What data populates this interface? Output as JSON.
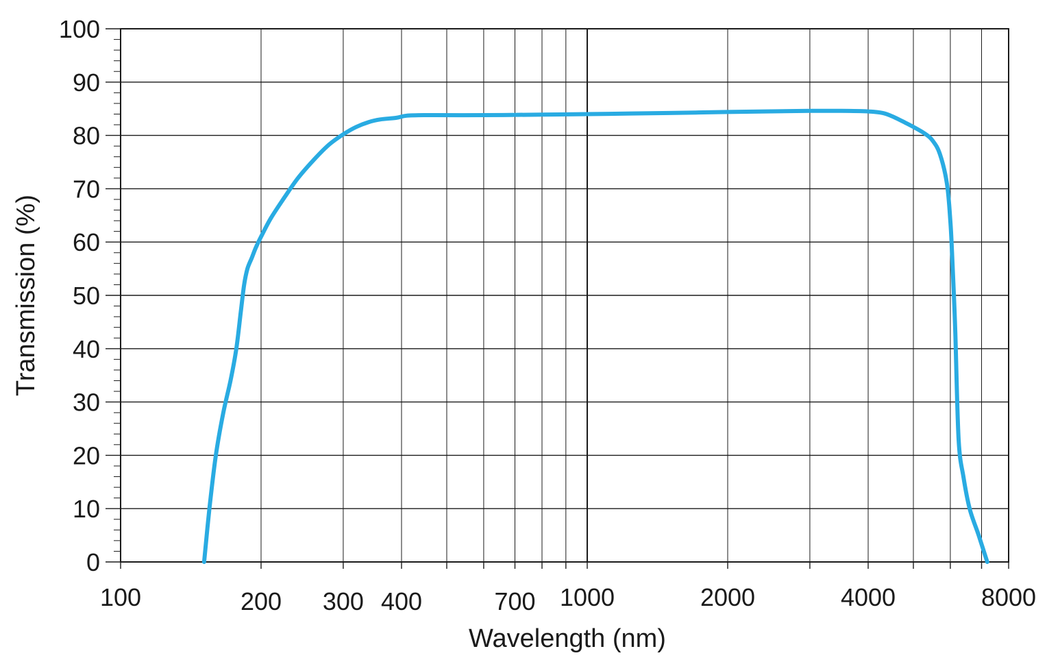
{
  "chart_data": {
    "type": "line",
    "xlabel": "Wavelength (nm)",
    "ylabel": "Transmission (%)",
    "xscale": "log",
    "xlim": [
      100,
      8000
    ],
    "ylim": [
      0,
      100
    ],
    "grid": true,
    "x_ticks": [
      100,
      200,
      300,
      400,
      700,
      1000,
      2000,
      4000,
      8000
    ],
    "x_tick_labels": [
      "100",
      "200",
      "300",
      "400",
      "700",
      "1000",
      "2000",
      "4000",
      "8000"
    ],
    "x_gridlines": [
      100,
      200,
      300,
      400,
      500,
      600,
      700,
      800,
      900,
      1000,
      2000,
      3000,
      4000,
      5000,
      6000,
      7000,
      8000
    ],
    "y_ticks": [
      0,
      10,
      20,
      30,
      40,
      50,
      60,
      70,
      80,
      90,
      100
    ],
    "y_tick_labels": [
      "0",
      "10",
      "20",
      "30",
      "40",
      "50",
      "60",
      "70",
      "80",
      "90",
      "100"
    ],
    "line_color": "#29abe2",
    "series": [
      {
        "x": [
          151,
          155,
          160,
          166,
          172,
          177,
          181,
          184,
          187,
          191,
          195,
          200,
          210,
          225,
          240,
          260,
          280,
          300,
          320,
          340,
          360,
          390,
          410,
          450,
          600,
          800,
          1000,
          1500,
          2000,
          3000,
          3500,
          4000,
          4300,
          4500,
          4800,
          5000,
          5300,
          5500,
          5700,
          5900,
          6000,
          6050,
          6100,
          6150,
          6250,
          6400,
          6600,
          6900,
          7200
        ],
        "y": [
          0,
          10,
          20,
          28,
          34,
          40,
          47,
          52,
          55,
          57,
          59,
          61,
          64.5,
          68.5,
          72,
          75.5,
          78.3,
          80.2,
          81.6,
          82.5,
          83,
          83.3,
          83.7,
          83.8,
          83.8,
          83.9,
          84,
          84.2,
          84.4,
          84.6,
          84.6,
          84.5,
          84.2,
          83.6,
          82.4,
          81.6,
          80.3,
          79,
          76.5,
          71,
          64,
          58,
          51,
          43,
          23,
          16,
          10,
          5,
          0
        ]
      }
    ]
  }
}
